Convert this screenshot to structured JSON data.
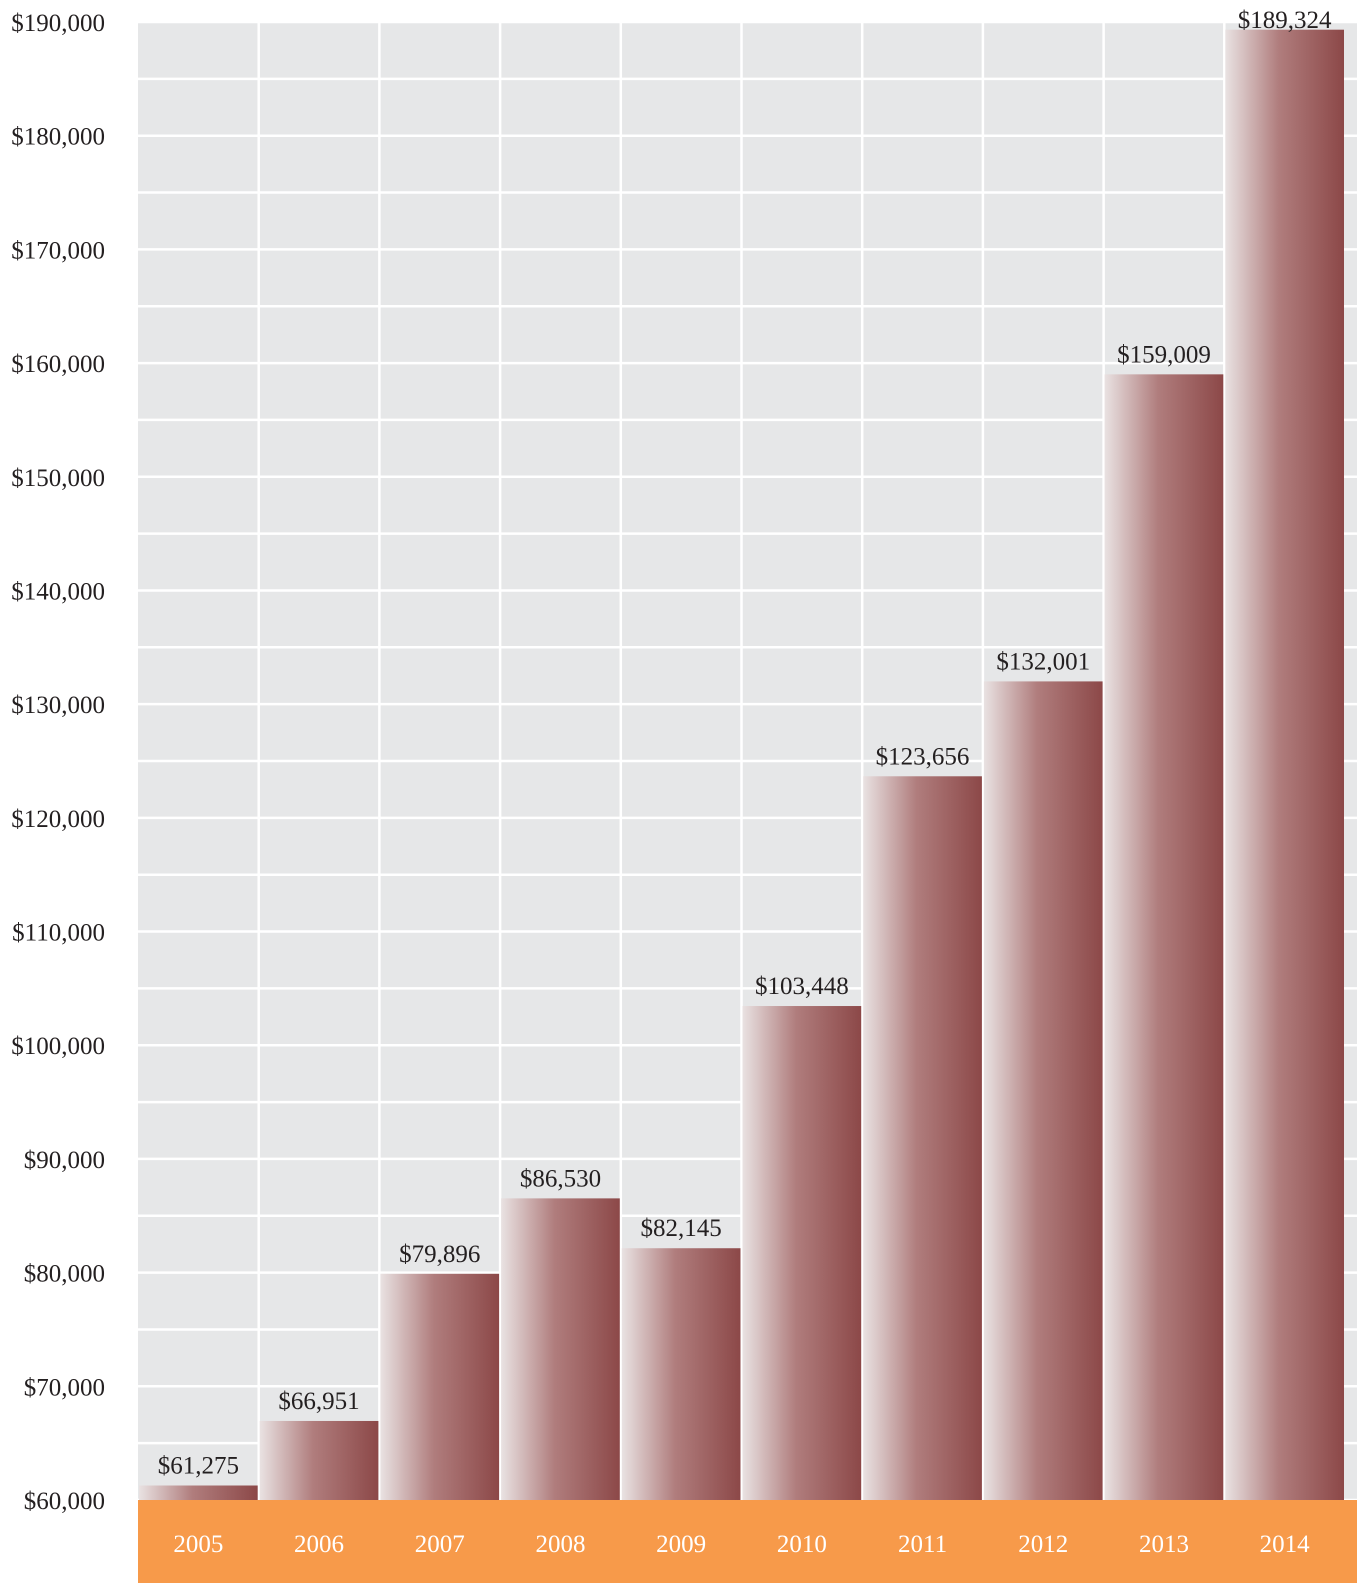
{
  "chart_data": {
    "type": "bar",
    "title": "",
    "xlabel": "",
    "ylabel": "",
    "categories": [
      "2005",
      "2006",
      "2007",
      "2008",
      "2009",
      "2010",
      "2011",
      "2012",
      "2013",
      "2014"
    ],
    "values": [
      61275,
      66951,
      79896,
      86530,
      82145,
      103448,
      123656,
      132001,
      159009,
      189324
    ],
    "data_labels": [
      "$61,275",
      "$66,951",
      "$79,896",
      "$86,530",
      "$82,145",
      "$103,448",
      "$123,656",
      "$132,001",
      "$159,009",
      "$189,324"
    ],
    "ylim": [
      60000,
      190000
    ],
    "y_ticks": [
      {
        "value": 60000,
        "label": "$60,000"
      },
      {
        "value": 70000,
        "label": "$70,000"
      },
      {
        "value": 80000,
        "label": "$80,000"
      },
      {
        "value": 90000,
        "label": "$90,000"
      },
      {
        "value": 100000,
        "label": "$100,000"
      },
      {
        "value": 110000,
        "label": "$110,000"
      },
      {
        "value": 120000,
        "label": "$120,000"
      },
      {
        "value": 130000,
        "label": "$130,000"
      },
      {
        "value": 140000,
        "label": "$140,000"
      },
      {
        "value": 150000,
        "label": "$150,000"
      },
      {
        "value": 160000,
        "label": "$160,000"
      },
      {
        "value": 170000,
        "label": "$170,000"
      },
      {
        "value": 180000,
        "label": "$180,000"
      },
      {
        "value": 190000,
        "label": "$190,000"
      }
    ],
    "minor_grid_step": 5000,
    "grid": true,
    "legend": "none",
    "colors": {
      "plot_background": "#e6e7e8",
      "grid": "#ffffff",
      "bar_light": "#e9e2e2",
      "bar_dark": "#8c4848",
      "category_band": "#f79a4a",
      "category_text": "#ffffff",
      "text": "#231f20"
    }
  }
}
